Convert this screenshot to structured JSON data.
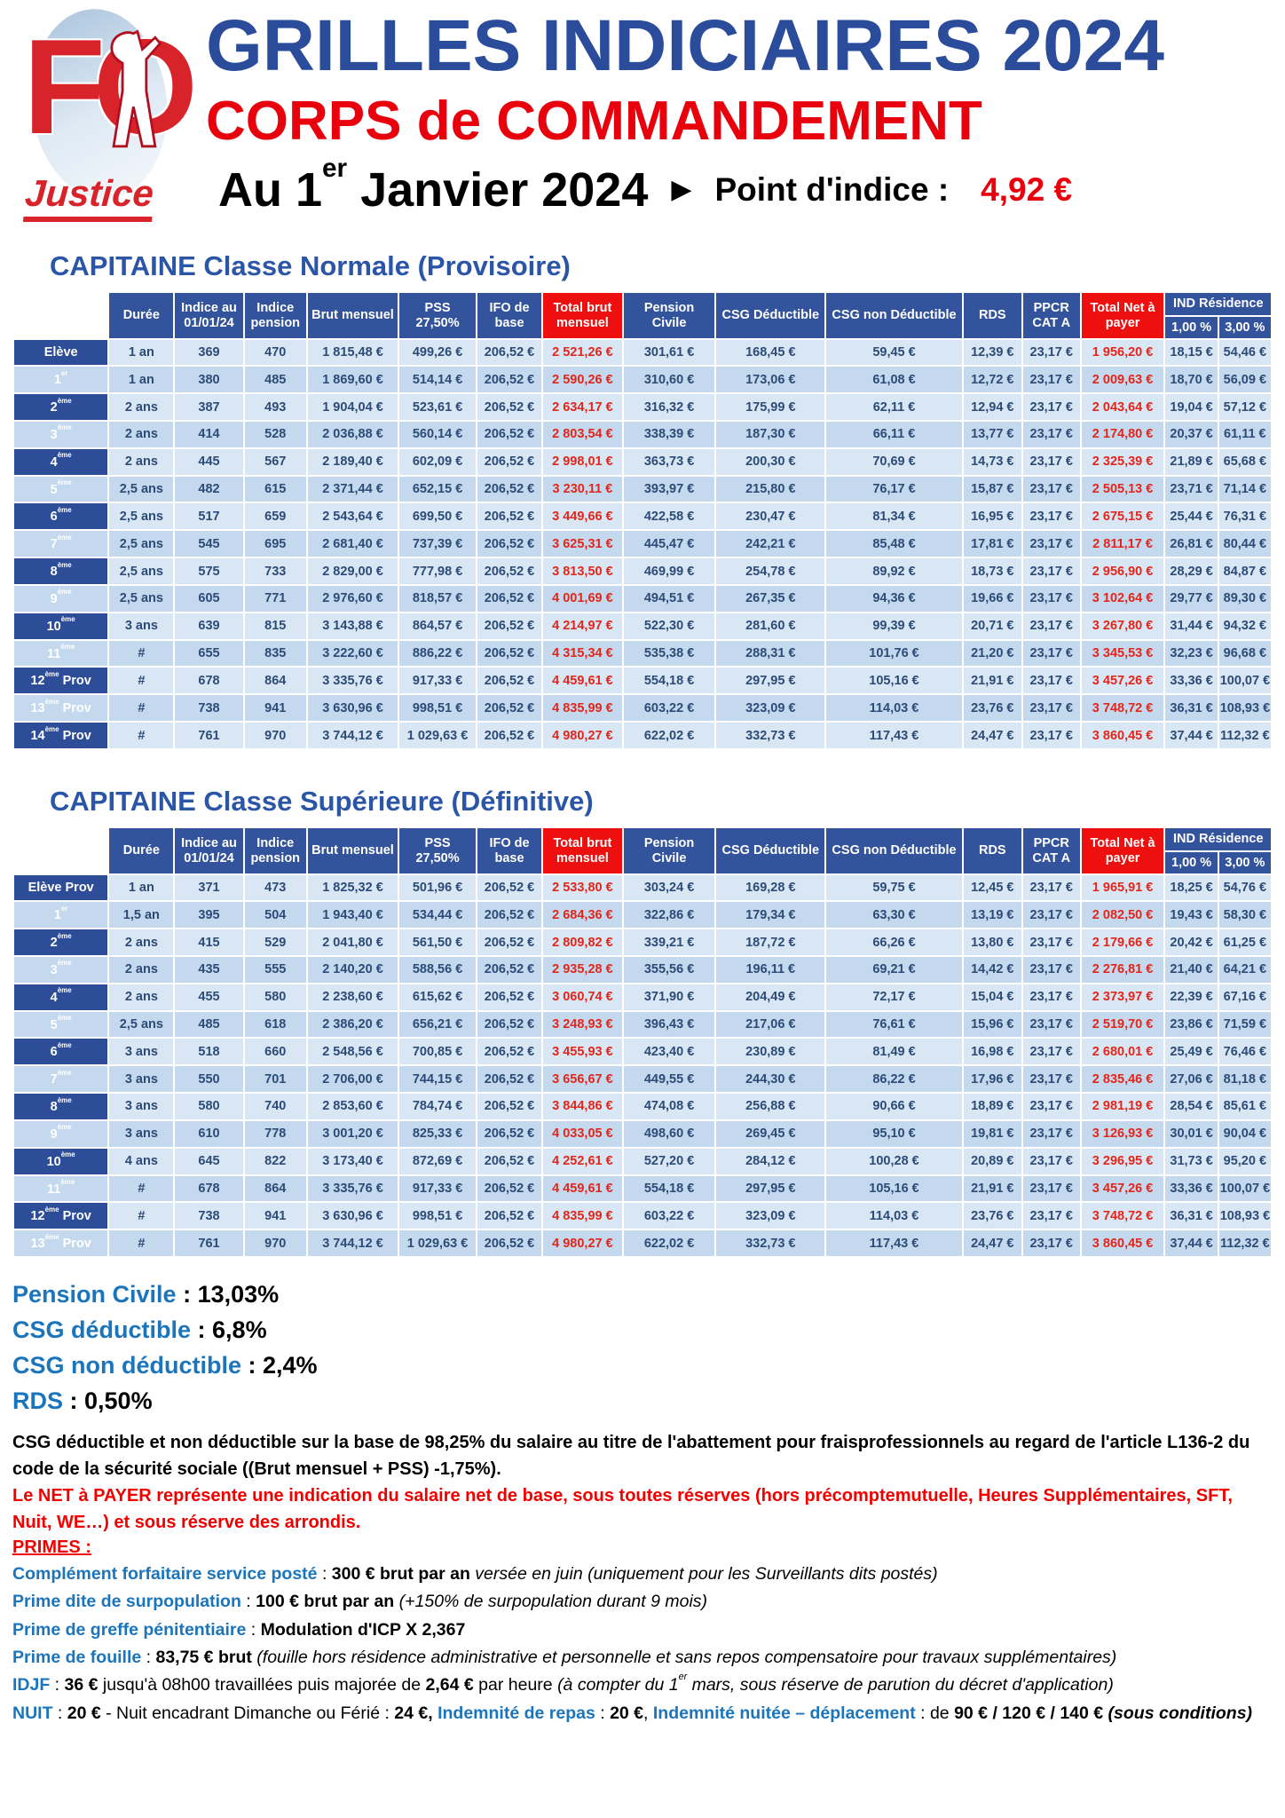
{
  "header": {
    "title": "GRILLES INDICIAIRES 2024",
    "subtitle": "CORPS de COMMANDEMENT",
    "date": "Au 1er Janvier 2024",
    "point_indice_label": "Point d'indice :",
    "point_indice_value": "4,92 €",
    "logo": {
      "fo": "FO",
      "justice": "Justice"
    }
  },
  "colors": {
    "header_blue": "#33549c",
    "accent_red": "#ee0f0f",
    "title_blue": "#2b4c9b",
    "subtitle_red": "#e8000d",
    "value_red": "#e3261b",
    "label_blue": "#1b75bc",
    "row_light": "#d9e7f5",
    "row_dark": "#c4d9ee",
    "echelon_navy": "#2d4d98"
  },
  "columns": {
    "duree": "Durée",
    "indice_au": "Indice au 01/01/24",
    "indice_pension": "Indice pension",
    "brut_mensuel": "Brut mensuel",
    "pss": "PSS 27,50%",
    "ifo": "IFO de base",
    "total_brut": "Total brut mensuel",
    "pension_civile": "Pension Civile",
    "csg_deductible": "CSG Déductible",
    "csg_non_deductible": "CSG non Déductible",
    "rds": "RDS",
    "ppcr": "PPCR CAT A",
    "total_net": "Total Net à payer",
    "ind_residence": "IND Résidence",
    "pct_1": "1,00 %",
    "pct_3": "3,00 %"
  },
  "tables": [
    {
      "title": "CAPITAINE Classe Normale (Provisoire)",
      "rows": [
        [
          "Elève",
          "1 an",
          "369",
          "470",
          "1 815,48 €",
          "499,26 €",
          "206,52 €",
          "2 521,26 €",
          "301,61 €",
          "168,45 €",
          "59,45 €",
          "12,39 €",
          "23,17 €",
          "1 956,20 €",
          "18,15 €",
          "54,46 €"
        ],
        [
          "1er",
          "1 an",
          "380",
          "485",
          "1 869,60 €",
          "514,14 €",
          "206,52 €",
          "2 590,26 €",
          "310,60 €",
          "173,06 €",
          "61,08 €",
          "12,72 €",
          "23,17 €",
          "2 009,63 €",
          "18,70 €",
          "56,09 €"
        ],
        [
          "2ème",
          "2 ans",
          "387",
          "493",
          "1 904,04 €",
          "523,61 €",
          "206,52 €",
          "2 634,17 €",
          "316,32 €",
          "175,99 €",
          "62,11 €",
          "12,94 €",
          "23,17 €",
          "2 043,64 €",
          "19,04 €",
          "57,12 €"
        ],
        [
          "3ème",
          "2 ans",
          "414",
          "528",
          "2 036,88 €",
          "560,14 €",
          "206,52 €",
          "2 803,54 €",
          "338,39 €",
          "187,30 €",
          "66,11 €",
          "13,77 €",
          "23,17 €",
          "2 174,80 €",
          "20,37 €",
          "61,11 €"
        ],
        [
          "4ème",
          "2 ans",
          "445",
          "567",
          "2 189,40 €",
          "602,09 €",
          "206,52 €",
          "2 998,01 €",
          "363,73 €",
          "200,30 €",
          "70,69 €",
          "14,73 €",
          "23,17 €",
          "2 325,39 €",
          "21,89 €",
          "65,68 €"
        ],
        [
          "5ème",
          "2,5 ans",
          "482",
          "615",
          "2 371,44 €",
          "652,15 €",
          "206,52 €",
          "3 230,11 €",
          "393,97 €",
          "215,80 €",
          "76,17 €",
          "15,87 €",
          "23,17 €",
          "2 505,13 €",
          "23,71 €",
          "71,14 €"
        ],
        [
          "6ème",
          "2,5 ans",
          "517",
          "659",
          "2 543,64 €",
          "699,50 €",
          "206,52 €",
          "3 449,66 €",
          "422,58 €",
          "230,47 €",
          "81,34 €",
          "16,95 €",
          "23,17 €",
          "2 675,15 €",
          "25,44 €",
          "76,31 €"
        ],
        [
          "7ème",
          "2,5 ans",
          "545",
          "695",
          "2 681,40 €",
          "737,39 €",
          "206,52 €",
          "3 625,31 €",
          "445,47 €",
          "242,21 €",
          "85,48 €",
          "17,81 €",
          "23,17 €",
          "2 811,17 €",
          "26,81 €",
          "80,44 €"
        ],
        [
          "8ème",
          "2,5 ans",
          "575",
          "733",
          "2 829,00 €",
          "777,98 €",
          "206,52 €",
          "3 813,50 €",
          "469,99 €",
          "254,78 €",
          "89,92 €",
          "18,73 €",
          "23,17 €",
          "2 956,90 €",
          "28,29 €",
          "84,87 €"
        ],
        [
          "9ème",
          "2,5 ans",
          "605",
          "771",
          "2 976,60 €",
          "818,57 €",
          "206,52 €",
          "4 001,69 €",
          "494,51 €",
          "267,35 €",
          "94,36 €",
          "19,66 €",
          "23,17 €",
          "3 102,64 €",
          "29,77 €",
          "89,30 €"
        ],
        [
          "10ème",
          "3 ans",
          "639",
          "815",
          "3 143,88 €",
          "864,57 €",
          "206,52 €",
          "4 214,97 €",
          "522,30 €",
          "281,60 €",
          "99,39 €",
          "20,71 €",
          "23,17 €",
          "3 267,80 €",
          "31,44 €",
          "94,32 €"
        ],
        [
          "11ème",
          "#",
          "655",
          "835",
          "3 222,60 €",
          "886,22 €",
          "206,52 €",
          "4 315,34 €",
          "535,38 €",
          "288,31 €",
          "101,76 €",
          "21,20 €",
          "23,17 €",
          "3 345,53 €",
          "32,23 €",
          "96,68 €"
        ],
        [
          "12ème Prov",
          "#",
          "678",
          "864",
          "3 335,76 €",
          "917,33 €",
          "206,52 €",
          "4 459,61 €",
          "554,18 €",
          "297,95 €",
          "105,16 €",
          "21,91 €",
          "23,17 €",
          "3 457,26 €",
          "33,36 €",
          "100,07 €"
        ],
        [
          "13ème Prov",
          "#",
          "738",
          "941",
          "3 630,96 €",
          "998,51 €",
          "206,52 €",
          "4 835,99 €",
          "603,22 €",
          "323,09 €",
          "114,03 €",
          "23,76 €",
          "23,17 €",
          "3 748,72 €",
          "36,31 €",
          "108,93 €"
        ],
        [
          "14ème Prov",
          "#",
          "761",
          "970",
          "3 744,12 €",
          "1 029,63 €",
          "206,52 €",
          "4 980,27 €",
          "622,02 €",
          "332,73 €",
          "117,43 €",
          "24,47 €",
          "23,17 €",
          "3 860,45 €",
          "37,44 €",
          "112,32 €"
        ]
      ]
    },
    {
      "title": "CAPITAINE Classe Supérieure (Définitive)",
      "rows": [
        [
          "Elève Prov",
          "1 an",
          "371",
          "473",
          "1 825,32 €",
          "501,96 €",
          "206,52 €",
          "2 533,80 €",
          "303,24 €",
          "169,28 €",
          "59,75 €",
          "12,45 €",
          "23,17 €",
          "1 965,91 €",
          "18,25 €",
          "54,76 €"
        ],
        [
          "1er",
          "1,5 an",
          "395",
          "504",
          "1 943,40 €",
          "534,44 €",
          "206,52 €",
          "2 684,36 €",
          "322,86 €",
          "179,34 €",
          "63,30 €",
          "13,19 €",
          "23,17 €",
          "2 082,50 €",
          "19,43 €",
          "58,30 €"
        ],
        [
          "2ème",
          "2 ans",
          "415",
          "529",
          "2 041,80 €",
          "561,50 €",
          "206,52 €",
          "2 809,82 €",
          "339,21 €",
          "187,72 €",
          "66,26 €",
          "13,80 €",
          "23,17 €",
          "2 179,66 €",
          "20,42 €",
          "61,25 €"
        ],
        [
          "3ème",
          "2 ans",
          "435",
          "555",
          "2 140,20 €",
          "588,56 €",
          "206,52 €",
          "2 935,28 €",
          "355,56 €",
          "196,11 €",
          "69,21 €",
          "14,42 €",
          "23,17 €",
          "2 276,81 €",
          "21,40 €",
          "64,21 €"
        ],
        [
          "4ème",
          "2 ans",
          "455",
          "580",
          "2 238,60 €",
          "615,62 €",
          "206,52 €",
          "3 060,74 €",
          "371,90 €",
          "204,49 €",
          "72,17 €",
          "15,04 €",
          "23,17 €",
          "2 373,97 €",
          "22,39 €",
          "67,16 €"
        ],
        [
          "5ème",
          "2,5 ans",
          "485",
          "618",
          "2 386,20 €",
          "656,21 €",
          "206,52 €",
          "3 248,93 €",
          "396,43 €",
          "217,06 €",
          "76,61 €",
          "15,96 €",
          "23,17 €",
          "2 519,70 €",
          "23,86 €",
          "71,59 €"
        ],
        [
          "6ème",
          "3 ans",
          "518",
          "660",
          "2 548,56 €",
          "700,85 €",
          "206,52 €",
          "3 455,93 €",
          "423,40 €",
          "230,89 €",
          "81,49 €",
          "16,98 €",
          "23,17 €",
          "2 680,01 €",
          "25,49 €",
          "76,46 €"
        ],
        [
          "7ème",
          "3 ans",
          "550",
          "701",
          "2 706,00 €",
          "744,15 €",
          "206,52 €",
          "3 656,67 €",
          "449,55 €",
          "244,30 €",
          "86,22 €",
          "17,96 €",
          "23,17 €",
          "2 835,46 €",
          "27,06 €",
          "81,18 €"
        ],
        [
          "8ème",
          "3 ans",
          "580",
          "740",
          "2 853,60 €",
          "784,74 €",
          "206,52 €",
          "3 844,86 €",
          "474,08 €",
          "256,88 €",
          "90,66 €",
          "18,89 €",
          "23,17 €",
          "2 981,19 €",
          "28,54 €",
          "85,61 €"
        ],
        [
          "9ème",
          "3 ans",
          "610",
          "778",
          "3 001,20 €",
          "825,33 €",
          "206,52 €",
          "4 033,05 €",
          "498,60 €",
          "269,45 €",
          "95,10 €",
          "19,81 €",
          "23,17 €",
          "3 126,93 €",
          "30,01 €",
          "90,04 €"
        ],
        [
          "10ème",
          "4 ans",
          "645",
          "822",
          "3 173,40 €",
          "872,69 €",
          "206,52 €",
          "4 252,61 €",
          "527,20 €",
          "284,12 €",
          "100,28 €",
          "20,89 €",
          "23,17 €",
          "3 296,95 €",
          "31,73 €",
          "95,20 €"
        ],
        [
          "11ème",
          "#",
          "678",
          "864",
          "3 335,76 €",
          "917,33 €",
          "206,52 €",
          "4 459,61 €",
          "554,18 €",
          "297,95 €",
          "105,16 €",
          "21,91 €",
          "23,17 €",
          "3 457,26 €",
          "33,36 €",
          "100,07 €"
        ],
        [
          "12ème Prov",
          "#",
          "738",
          "941",
          "3 630,96 €",
          "998,51 €",
          "206,52 €",
          "4 835,99 €",
          "603,22 €",
          "323,09 €",
          "114,03 €",
          "23,76 €",
          "23,17 €",
          "3 748,72 €",
          "36,31 €",
          "108,93 €"
        ],
        [
          "13ème Prov",
          "#",
          "761",
          "970",
          "3 744,12 €",
          "1 029,63 €",
          "206,52 €",
          "4 980,27 €",
          "622,02 €",
          "332,73 €",
          "117,43 €",
          "24,47 €",
          "23,17 €",
          "3 860,45 €",
          "37,44 €",
          "112,32 €"
        ]
      ]
    }
  ],
  "rates": [
    {
      "label": "Pension Civile",
      "sep": " : ",
      "value": "13,03%"
    },
    {
      "label": "CSG déductible",
      "sep": " : ",
      "value": "6,8%"
    },
    {
      "label": "CSG non déductible",
      "sep": " : ",
      "value": "2,4%"
    },
    {
      "label": "RDS",
      "sep": " : ",
      "value": "0,50%"
    }
  ],
  "notes": {
    "black": "CSG déductible et non déductible sur la base de 98,25% du salaire au titre de l'abattement pour fraisprofessionnels au regard de l'article L136-2 du code de la sécurité sociale ((Brut mensuel + PSS) -1,75%).",
    "red": "Le NET à PAYER représente une indication du salaire net de base, sous toutes réserves (hors précomptemutuelle, Heures Supplémentaires, SFT, Nuit, WE…) et sous réserve des arrondis.",
    "primes_heading": "PRIMES :"
  },
  "primes": [
    [
      {
        "t": "Complément forfaitaire service posté",
        "s": "label"
      },
      {
        "t": " : ",
        "s": "plain"
      },
      {
        "t": "300 € brut par an",
        "s": "bold"
      },
      {
        "t": " versée en juin (uniquement pour les Surveillants dits postés)",
        "s": "italic"
      }
    ],
    [
      {
        "t": "Prime dite de surpopulation",
        "s": "label"
      },
      {
        "t": " : ",
        "s": "plain"
      },
      {
        "t": "100 € brut par an",
        "s": "bold"
      },
      {
        "t": " (+150% de surpopulation durant 9 mois)",
        "s": "italic"
      }
    ],
    [
      {
        "t": "Prime de greffe pénitentiaire",
        "s": "label"
      },
      {
        "t": " : ",
        "s": "plain"
      },
      {
        "t": "Modulation d'ICP X 2,367",
        "s": "bold"
      }
    ],
    [
      {
        "t": "Prime de fouille",
        "s": "label"
      },
      {
        "t": " : ",
        "s": "plain"
      },
      {
        "t": "83,75 € brut ",
        "s": "bold"
      },
      {
        "t": "(fouille hors résidence administrative et personnelle et sans repos compensatoire pour travaux supplémentaires)",
        "s": "italic"
      }
    ],
    [
      {
        "t": "IDJF",
        "s": "label"
      },
      {
        "t": " : ",
        "s": "plain"
      },
      {
        "t": "36 €",
        "s": "bold"
      },
      {
        "t": " jusqu'à 08h00 travaillées puis majorée de ",
        "s": "plain"
      },
      {
        "t": "2,64 €",
        "s": "bold"
      },
      {
        "t": " par heure ",
        "s": "plain"
      },
      {
        "t": "(à compter du 1er mars, sous réserve de parution du décret d'application)",
        "s": "italic"
      }
    ],
    [
      {
        "t": "NUIT",
        "s": "label"
      },
      {
        "t": " : ",
        "s": "plain"
      },
      {
        "t": "20 €",
        "s": "bold"
      },
      {
        "t": " - Nuit encadrant Dimanche ou Férié : ",
        "s": "plain"
      },
      {
        "t": "24 €,",
        "s": "bold"
      },
      {
        "t": " ",
        "s": "plain"
      },
      {
        "t": "Indemnité de repas",
        "s": "label"
      },
      {
        "t": " : ",
        "s": "plain"
      },
      {
        "t": "20 €",
        "s": "bold"
      },
      {
        "t": ", ",
        "s": "plain"
      },
      {
        "t": "Indemnité nuitée – déplacement",
        "s": "label"
      },
      {
        "t": " : de ",
        "s": "plain"
      },
      {
        "t": "90 € / 120 € / 140 €",
        "s": "bold"
      },
      {
        "t": " (sous conditions)",
        "s": "bolditalic"
      }
    ]
  ]
}
